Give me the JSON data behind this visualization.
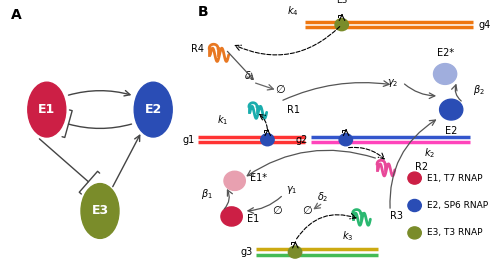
{
  "colors": {
    "E1": "#cc1f45",
    "E1_light": "#e8a0b0",
    "E2": "#2a4db5",
    "E2_light": "#a0aedd",
    "E3": "#7a8c2a",
    "R1": "#1aadad",
    "R2": "#e84899",
    "R3": "#2ab870",
    "R4": "#e87822",
    "g1_top": "#ff3333",
    "g1_bot": "#ff3333",
    "g2_top": "#3355cc",
    "g2_bot": "#ff44bb",
    "g3_top": "#ccaa11",
    "g3_bot": "#44bb55",
    "g4_top": "#ee7711",
    "g4_bot": "#ee7711",
    "arrow": "#444444",
    "gray": "#888888"
  },
  "legend": [
    {
      "color": "#cc1f45",
      "text": "E1, T7 RNAP"
    },
    {
      "color": "#2a4db5",
      "text": "E2, SP6 RNAP"
    },
    {
      "color": "#7a8c2a",
      "text": "E3, T3 RNAP"
    }
  ]
}
